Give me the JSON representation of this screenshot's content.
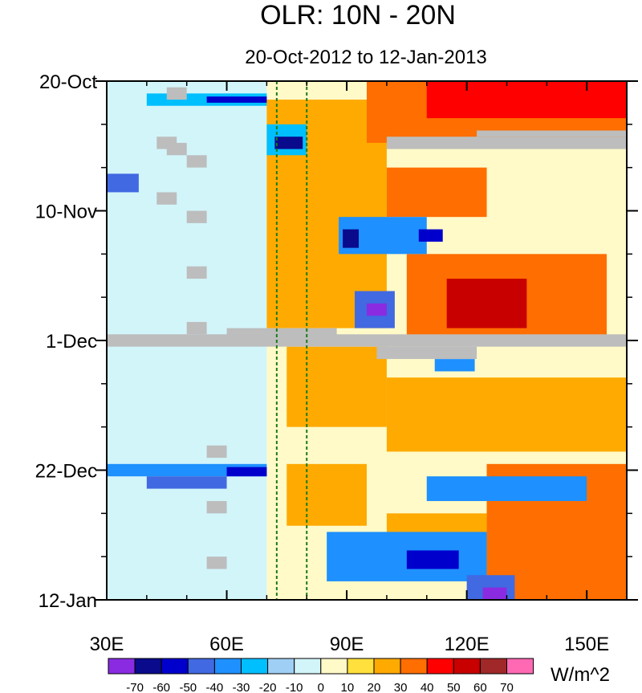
{
  "chart_data": {
    "type": "heatmap",
    "title": "OLR: 10N - 20N",
    "subtitle": "20-Oct-2012 to 12-Jan-2013",
    "x_range": [
      30,
      160
    ],
    "y_range_days": [
      0,
      84
    ],
    "x_ticks": [
      {
        "value": 30,
        "label": "30E"
      },
      {
        "value": 60,
        "label": "60E"
      },
      {
        "value": 90,
        "label": "90E"
      },
      {
        "value": 120,
        "label": "120E"
      },
      {
        "value": 150,
        "label": "150E"
      }
    ],
    "y_ticks": [
      {
        "day": 0,
        "label": "20-Oct"
      },
      {
        "day": 21,
        "label": "10-Nov"
      },
      {
        "day": 42,
        "label": "1-Dec"
      },
      {
        "day": 63,
        "label": "22-Dec"
      },
      {
        "day": 84,
        "label": "12-Jan"
      }
    ],
    "reference_lines_lon": [
      72.5,
      80
    ],
    "colorbar": {
      "units": "W/m^2",
      "levels": [
        "-70",
        "-60",
        "-50",
        "-40",
        "-30",
        "-20",
        "-10",
        "0",
        "10",
        "20",
        "30",
        "40",
        "50",
        "60",
        "70"
      ],
      "colors": [
        "#8a2be2",
        "#0a0a8c",
        "#0000cd",
        "#4169e1",
        "#1e90ff",
        "#00bfff",
        "#a0cff5",
        "#d2f5fa",
        "#fffac8",
        "#ffe03c",
        "#ffaa00",
        "#ff6e00",
        "#ff0000",
        "#c80000",
        "#a02828",
        "#ff69b4"
      ]
    },
    "anomaly_cells": [
      {
        "lon0": 30,
        "lon1": 160,
        "day0": 0,
        "day1": 84,
        "value": 5
      },
      {
        "lon0": 30,
        "lon1": 70,
        "day0": 0,
        "day1": 84,
        "value": -3
      },
      {
        "lon0": 70,
        "lon1": 100,
        "day0": 3,
        "day1": 40,
        "value": 22
      },
      {
        "lon0": 95,
        "lon1": 160,
        "day0": 0,
        "day1": 10,
        "value": 30
      },
      {
        "lon0": 110,
        "lon1": 160,
        "day0": 0,
        "day1": 6,
        "value": 42
      },
      {
        "lon0": 100,
        "lon1": 125,
        "day0": 14,
        "day1": 22,
        "value": 35
      },
      {
        "lon0": 105,
        "lon1": 155,
        "day0": 28,
        "day1": 42,
        "value": 38
      },
      {
        "lon0": 115,
        "lon1": 135,
        "day0": 32,
        "day1": 40,
        "value": 52
      },
      {
        "lon0": 75,
        "lon1": 100,
        "day0": 43,
        "day1": 56,
        "value": 22
      },
      {
        "lon0": 100,
        "lon1": 160,
        "day0": 48,
        "day1": 60,
        "value": 28
      },
      {
        "lon0": 125,
        "lon1": 160,
        "day0": 62,
        "day1": 84,
        "value": 32
      },
      {
        "lon0": 100,
        "lon1": 125,
        "day0": 70,
        "day1": 76,
        "value": 25
      },
      {
        "lon0": 75,
        "lon1": 95,
        "day0": 62,
        "day1": 72,
        "value": 20
      },
      {
        "lon0": 40,
        "lon1": 70,
        "day0": 2,
        "day1": 4,
        "value": -25
      },
      {
        "lon0": 55,
        "lon1": 70,
        "day0": 2.5,
        "day1": 3.5,
        "value": -55
      },
      {
        "lon0": 70,
        "lon1": 80,
        "day0": 7,
        "day1": 12,
        "value": -30
      },
      {
        "lon0": 72,
        "lon1": 79,
        "day0": 9,
        "day1": 11,
        "value": -65
      },
      {
        "lon0": 30,
        "lon1": 38,
        "day0": 15,
        "day1": 18,
        "value": -45
      },
      {
        "lon0": 88,
        "lon1": 110,
        "day0": 22,
        "day1": 28,
        "value": -35
      },
      {
        "lon0": 89,
        "lon1": 93,
        "day0": 24,
        "day1": 27,
        "value": -68
      },
      {
        "lon0": 108,
        "lon1": 114,
        "day0": 24,
        "day1": 26,
        "value": -55
      },
      {
        "lon0": 92,
        "lon1": 102,
        "day0": 34,
        "day1": 40,
        "value": -50
      },
      {
        "lon0": 95,
        "lon1": 100,
        "day0": 36,
        "day1": 38,
        "value": -72
      },
      {
        "lon0": 112,
        "lon1": 122,
        "day0": 45,
        "day1": 47,
        "value": -40
      },
      {
        "lon0": 30,
        "lon1": 70,
        "day0": 62,
        "day1": 64,
        "value": -35
      },
      {
        "lon0": 40,
        "lon1": 60,
        "day0": 64,
        "day1": 66,
        "value": -50
      },
      {
        "lon0": 60,
        "lon1": 70,
        "day0": 62.5,
        "day1": 64,
        "value": -55
      },
      {
        "lon0": 110,
        "lon1": 150,
        "day0": 64,
        "day1": 68,
        "value": -40
      },
      {
        "lon0": 85,
        "lon1": 125,
        "day0": 73,
        "day1": 81,
        "value": -38
      },
      {
        "lon0": 105,
        "lon1": 118,
        "day0": 76,
        "day1": 79,
        "value": -58
      },
      {
        "lon0": 120,
        "lon1": 132,
        "day0": 80,
        "day1": 84,
        "value": -45
      },
      {
        "lon0": 124,
        "lon1": 130,
        "day0": 82,
        "day1": 84,
        "value": -72
      }
    ],
    "missing_cells": [
      {
        "lon0": 30,
        "lon1": 160,
        "day0": 41,
        "day1": 43
      },
      {
        "lon0": 100,
        "lon1": 160,
        "day0": 9,
        "day1": 11
      },
      {
        "lon0": 122.5,
        "lon1": 160,
        "day0": 8,
        "day1": 9
      },
      {
        "lon0": 97.5,
        "lon1": 122.5,
        "day0": 43,
        "day1": 45
      },
      {
        "lon0": 45,
        "lon1": 50,
        "day0": 1,
        "day1": 3
      },
      {
        "lon0": 42.5,
        "lon1": 47.5,
        "day0": 9,
        "day1": 11
      },
      {
        "lon0": 45,
        "lon1": 50,
        "day0": 10,
        "day1": 12
      },
      {
        "lon0": 50,
        "lon1": 55,
        "day0": 12,
        "day1": 14
      },
      {
        "lon0": 42.5,
        "lon1": 47.5,
        "day0": 18,
        "day1": 20
      },
      {
        "lon0": 50,
        "lon1": 55,
        "day0": 21,
        "day1": 23
      },
      {
        "lon0": 50,
        "lon1": 55,
        "day0": 30,
        "day1": 32
      },
      {
        "lon0": 50,
        "lon1": 55,
        "day0": 39,
        "day1": 41
      },
      {
        "lon0": 60,
        "lon1": 87.5,
        "day0": 40,
        "day1": 42
      },
      {
        "lon0": 55,
        "lon1": 60,
        "day0": 59,
        "day1": 61
      },
      {
        "lon0": 55,
        "lon1": 60,
        "day0": 68,
        "day1": 70
      },
      {
        "lon0": 55,
        "lon1": 60,
        "day0": 77,
        "day1": 79
      }
    ]
  }
}
